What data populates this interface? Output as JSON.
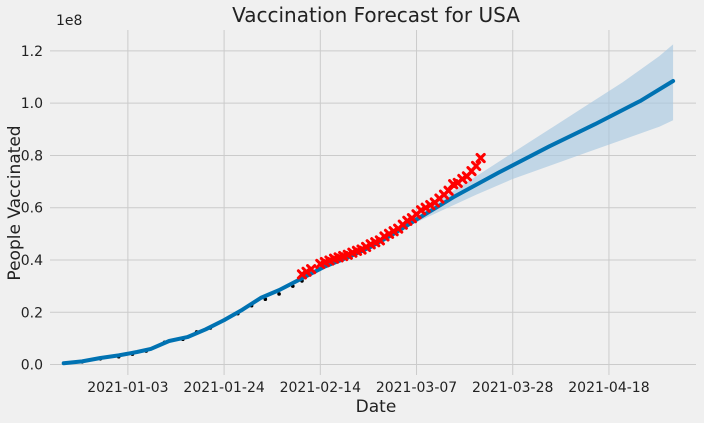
{
  "chart_data": {
    "type": "line",
    "title": "Vaccination Forecast for USA",
    "xlabel": "Date",
    "ylabel": "People Vaccinated",
    "y_offset_label": "1e8",
    "x_range": [
      "2020-12-17",
      "2021-05-07"
    ],
    "ylim": [
      -0.04,
      1.28
    ],
    "x_ticks": [
      "2021-01-03",
      "2021-01-24",
      "2021-02-14",
      "2021-03-07",
      "2021-03-28",
      "2021-04-18"
    ],
    "y_ticks": [
      0.0,
      0.2,
      0.4,
      0.6,
      0.8,
      1.0,
      1.2
    ],
    "y_tick_labels": [
      "0.0",
      "0.2",
      "0.4",
      "0.6",
      "0.8",
      "1.0",
      "1.2"
    ],
    "grid": true,
    "colors": {
      "forecast": "#0072b2",
      "interval": "#a8c8e0",
      "observed_train": "#000000",
      "observed_test": "#ff0000",
      "background": "#f0f0f0",
      "grid": "#cbcbcb"
    },
    "series": [
      {
        "kind": "forecast_line",
        "x": [
          "2020-12-20",
          "2020-12-24",
          "2020-12-28",
          "2021-01-01",
          "2021-01-05",
          "2021-01-08",
          "2021-01-12",
          "2021-01-16",
          "2021-01-20",
          "2021-01-24",
          "2021-01-28",
          "2021-02-01",
          "2021-02-05",
          "2021-02-10",
          "2021-02-15",
          "2021-02-20",
          "2021-02-25",
          "2021-03-02",
          "2021-03-07",
          "2021-03-15",
          "2021-03-25",
          "2021-04-05",
          "2021-04-15",
          "2021-04-25",
          "2021-05-02"
        ],
        "y": [
          0.005,
          0.012,
          0.025,
          0.035,
          0.048,
          0.06,
          0.09,
          0.105,
          0.135,
          0.17,
          0.21,
          0.255,
          0.285,
          0.33,
          0.375,
          0.41,
          0.45,
          0.5,
          0.555,
          0.64,
          0.735,
          0.835,
          0.92,
          1.01,
          1.085
        ]
      },
      {
        "kind": "interval_upper",
        "x": [
          "2021-03-04",
          "2021-03-12",
          "2021-03-20",
          "2021-03-28",
          "2021-04-05",
          "2021-04-13",
          "2021-04-21",
          "2021-04-29",
          "2021-05-02"
        ],
        "y": [
          0.53,
          0.63,
          0.72,
          0.81,
          0.9,
          0.99,
          1.08,
          1.18,
          1.225
        ]
      },
      {
        "kind": "interval_lower",
        "x": [
          "2021-03-04",
          "2021-03-12",
          "2021-03-20",
          "2021-03-28",
          "2021-04-05",
          "2021-04-13",
          "2021-04-21",
          "2021-04-29",
          "2021-05-02"
        ],
        "y": [
          0.52,
          0.585,
          0.65,
          0.71,
          0.76,
          0.81,
          0.86,
          0.91,
          0.935
        ]
      },
      {
        "kind": "observed_train",
        "x": [
          "2020-12-20",
          "2020-12-24",
          "2020-12-28",
          "2021-01-01",
          "2021-01-04",
          "2021-01-07",
          "2021-01-11",
          "2021-01-15",
          "2021-01-18",
          "2021-01-21",
          "2021-01-24",
          "2021-01-27",
          "2021-01-30",
          "2021-02-02",
          "2021-02-05",
          "2021-02-08",
          "2021-02-10"
        ],
        "y": [
          0.005,
          0.01,
          0.022,
          0.03,
          0.04,
          0.052,
          0.085,
          0.097,
          0.125,
          0.14,
          0.17,
          0.195,
          0.225,
          0.25,
          0.27,
          0.3,
          0.32
        ]
      },
      {
        "kind": "observed_test",
        "x": [
          "2021-02-10",
          "2021-02-11",
          "2021-02-12",
          "2021-02-14",
          "2021-02-15",
          "2021-02-16",
          "2021-02-17",
          "2021-02-18",
          "2021-02-19",
          "2021-02-20",
          "2021-02-21",
          "2021-02-22",
          "2021-02-23",
          "2021-02-24",
          "2021-02-25",
          "2021-02-26",
          "2021-02-27",
          "2021-02-28",
          "2021-03-01",
          "2021-03-02",
          "2021-03-03",
          "2021-03-04",
          "2021-03-05",
          "2021-03-06",
          "2021-03-07",
          "2021-03-08",
          "2021-03-09",
          "2021-03-10",
          "2021-03-11",
          "2021-03-12",
          "2021-03-13",
          "2021-03-14",
          "2021-03-15",
          "2021-03-16",
          "2021-03-17",
          "2021-03-18",
          "2021-03-19",
          "2021-03-20",
          "2021-03-21"
        ],
        "y": [
          0.345,
          0.355,
          0.365,
          0.385,
          0.392,
          0.398,
          0.405,
          0.41,
          0.415,
          0.42,
          0.428,
          0.435,
          0.44,
          0.45,
          0.46,
          0.468,
          0.475,
          0.49,
          0.5,
          0.51,
          0.52,
          0.535,
          0.55,
          0.56,
          0.575,
          0.59,
          0.6,
          0.61,
          0.62,
          0.635,
          0.65,
          0.665,
          0.69,
          0.695,
          0.71,
          0.72,
          0.74,
          0.76,
          0.79
        ]
      }
    ]
  }
}
